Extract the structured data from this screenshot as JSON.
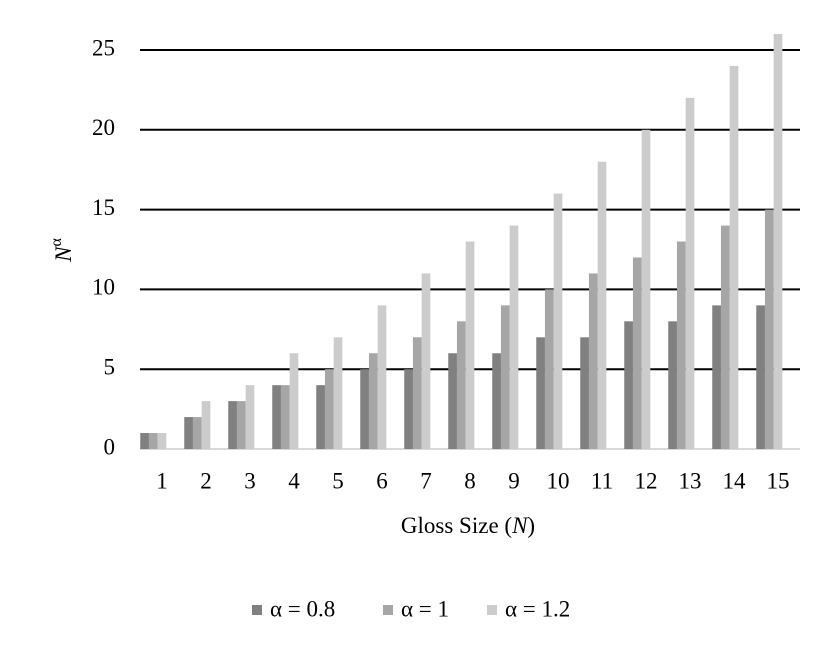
{
  "chart_data": {
    "type": "bar",
    "xlabel": [
      "Gloss Size (",
      "N",
      ")"
    ],
    "ylabel": [
      "N",
      "α"
    ],
    "categories": [
      "1",
      "2",
      "3",
      "4",
      "5",
      "6",
      "7",
      "8",
      "9",
      "10",
      "11",
      "12",
      "13",
      "14",
      "15"
    ],
    "series": [
      {
        "name": "α = 0.8",
        "color": "#808080",
        "values": [
          1,
          2,
          3,
          4,
          4,
          5,
          5,
          6,
          6,
          7,
          7,
          8,
          8,
          9,
          9
        ]
      },
      {
        "name": "α = 1",
        "color": "#a6a6a6",
        "values": [
          1,
          2,
          3,
          4,
          5,
          6,
          7,
          8,
          9,
          10,
          11,
          12,
          13,
          14,
          15
        ]
      },
      {
        "name": "α = 1.2",
        "color": "#cccccc",
        "values": [
          1,
          3,
          4,
          6,
          7,
          9,
          11,
          13,
          14,
          16,
          18,
          20,
          22,
          24,
          26
        ]
      }
    ],
    "ylim": [
      0,
      25
    ],
    "yticks": [
      0,
      5,
      10,
      15,
      20,
      25
    ],
    "grid": true,
    "legend": "bottom"
  }
}
